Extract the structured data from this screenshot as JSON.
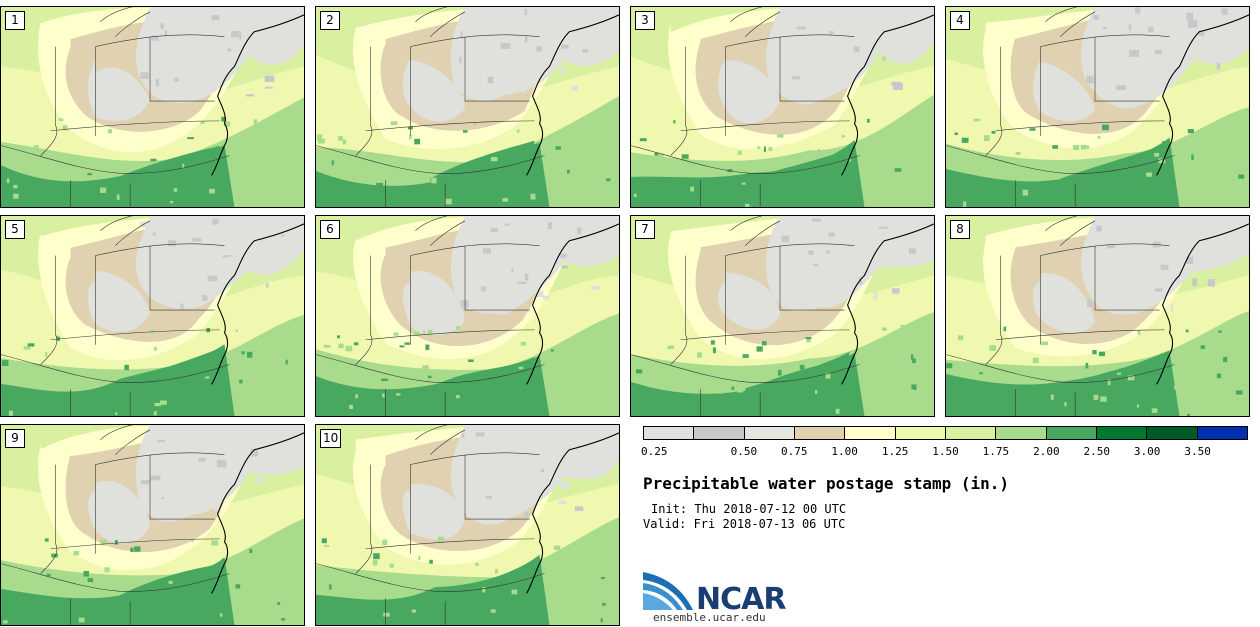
{
  "figure": {
    "title": "Precipitable water postage stamp (in.)",
    "init": "Init: Thu 2018-07-12 00 UTC",
    "valid": "Valid: Fri 2018-07-13 06 UTC",
    "logo_text": "NCAR",
    "site": "ensemble.ucar.edu"
  },
  "members": [
    "1",
    "2",
    "3",
    "4",
    "5",
    "6",
    "7",
    "8",
    "9",
    "10"
  ],
  "colorbar": {
    "ticks": [
      "0.25",
      "0.50",
      "0.75",
      "1.00",
      "1.25",
      "1.50",
      "1.75",
      "2.00",
      "2.50",
      "3.00",
      "3.50"
    ],
    "colors": [
      "#e0e0dc",
      "#c8c8cc",
      "#e6e6e0",
      "#e0d2b0",
      "#ffffcc",
      "#f0f8b0",
      "#d8f0a0",
      "#a8dc8c",
      "#48a860",
      "#007830",
      "#005a28",
      "#0030b0"
    ]
  },
  "map_colors": {
    "gray_low": "#c8c8cc",
    "gray": "#e0e0dc",
    "tan": "#e0d2b0",
    "cream": "#ffffcc",
    "lime": "#f0f8b0",
    "light_green": "#d8f0a0",
    "green": "#a8dc8c",
    "mid_green": "#48a860",
    "dark_green": "#007830"
  }
}
